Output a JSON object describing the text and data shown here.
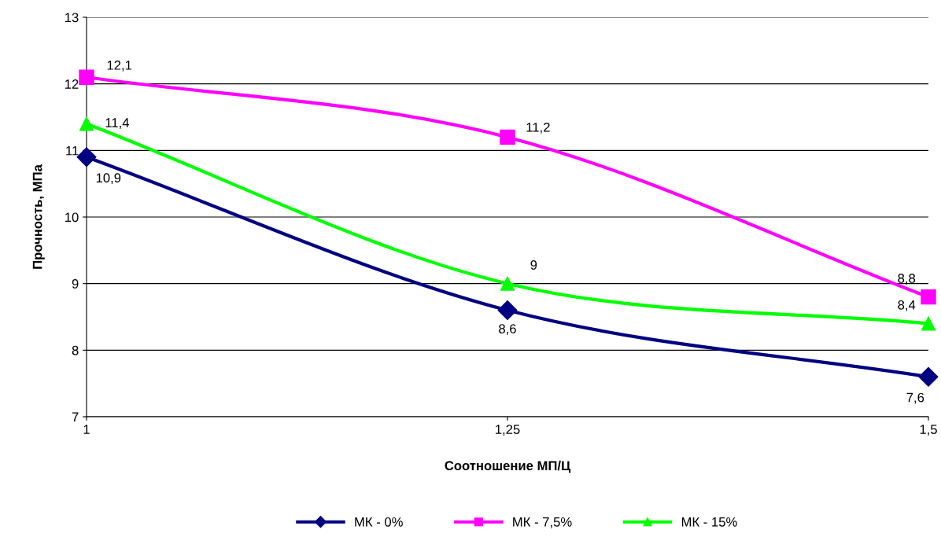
{
  "chart_data": {
    "type": "line",
    "xlabel": "Соотношение МП/Ц",
    "ylabel": "Прочность, МПа",
    "x": [
      1,
      1.25,
      1.5
    ],
    "xlim": [
      1,
      1.5
    ],
    "xticks": [
      {
        "value": 1,
        "label": "1"
      },
      {
        "value": 1.25,
        "label": "1,25"
      },
      {
        "value": 1.5,
        "label": "1,5"
      }
    ],
    "ylim": [
      7,
      13
    ],
    "yticks": [
      7,
      8,
      9,
      10,
      11,
      12,
      13
    ],
    "grid": "y",
    "legend": "bottom",
    "series": [
      {
        "name": "МК - 0%",
        "color": "#000080",
        "marker": "diamond",
        "values": [
          10.9,
          8.6,
          7.6
        ],
        "value_labels": [
          "10,9",
          "8,6",
          "7,6"
        ]
      },
      {
        "name": "МК - 7,5%",
        "color": "#ff00ff",
        "marker": "square",
        "values": [
          12.1,
          11.2,
          8.8
        ],
        "value_labels": [
          "12,1",
          "11,2",
          "8,8"
        ]
      },
      {
        "name": "МК - 15%",
        "color": "#00ff00",
        "marker": "triangle",
        "values": [
          11.4,
          9,
          8.4
        ],
        "value_labels": [
          "11,4",
          "9",
          "8,4"
        ]
      }
    ]
  }
}
